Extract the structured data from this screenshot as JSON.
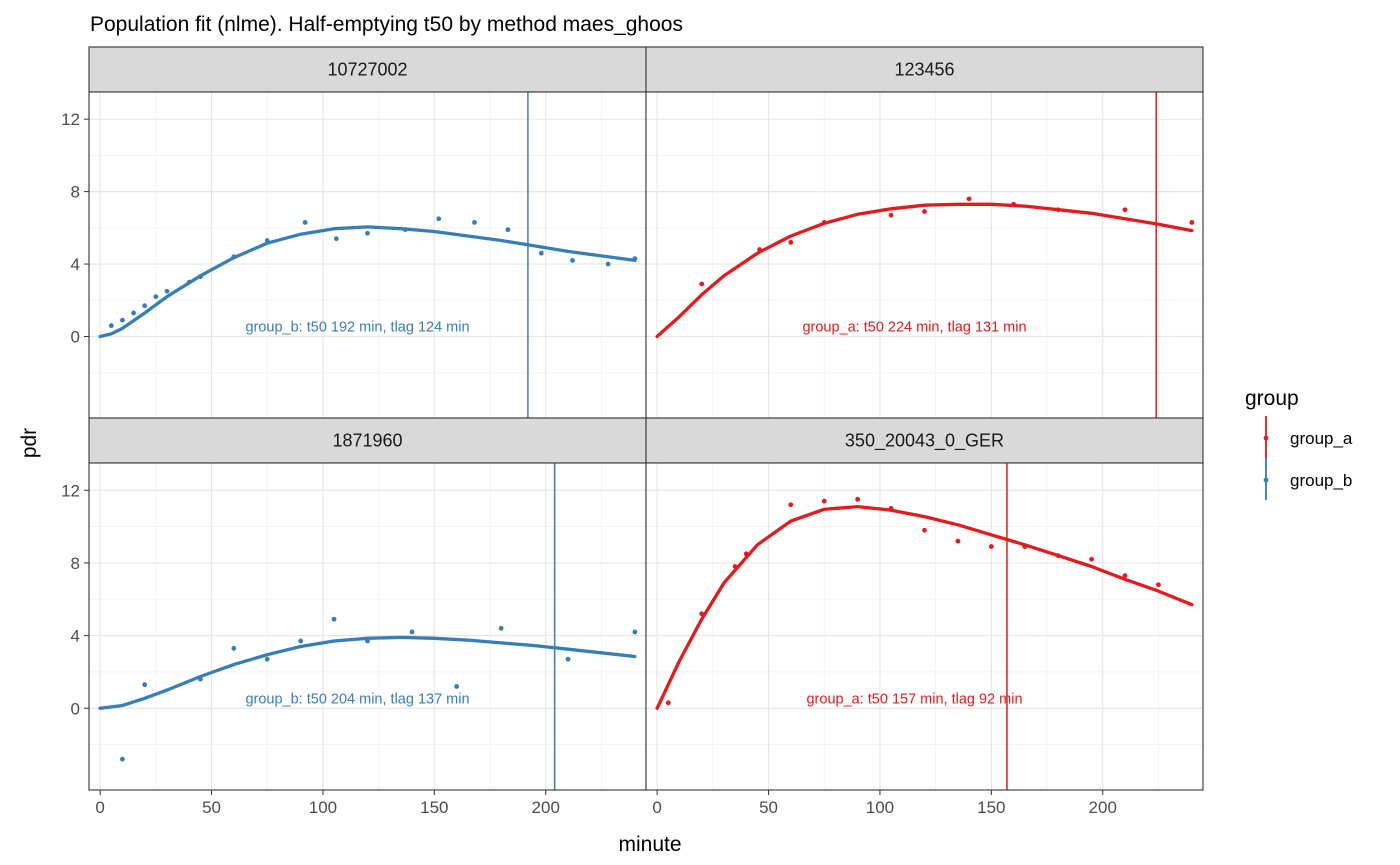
{
  "chart_data": {
    "type": "scatter",
    "title": "Population fit (nlme). Half-emptying t50 by method maes_ghoos",
    "xlabel": "minute",
    "ylabel": "pdr",
    "xlim": [
      -5,
      245
    ],
    "ylim": [
      -4.5,
      13.5
    ],
    "x_ticks": [
      0,
      50,
      100,
      150,
      200
    ],
    "y_ticks": [
      0,
      4,
      8,
      12
    ],
    "grid": true,
    "legend": {
      "title": "group",
      "placement": "right",
      "entries": [
        {
          "label": "group_a",
          "color": "#e41a1c"
        },
        {
          "label": "group_b",
          "color": "#377eb8"
        }
      ]
    },
    "panels": [
      {
        "label": "10727002",
        "group": "group_b",
        "color": "#377eb8",
        "t50": 192,
        "annotation": "group_b: t50 192 min, tlag 124 min",
        "points": [
          [
            5,
            0.6
          ],
          [
            10,
            0.9
          ],
          [
            15,
            1.3
          ],
          [
            20,
            1.7
          ],
          [
            25,
            2.2
          ],
          [
            30,
            2.5
          ],
          [
            40,
            3.0
          ],
          [
            45,
            3.3
          ],
          [
            60,
            4.4
          ],
          [
            75,
            5.3
          ],
          [
            92,
            6.3
          ],
          [
            106,
            5.4
          ],
          [
            120,
            5.7
          ],
          [
            137,
            5.9
          ],
          [
            152,
            6.5
          ],
          [
            168,
            6.3
          ],
          [
            183,
            5.9
          ],
          [
            198,
            4.6
          ],
          [
            212,
            4.2
          ],
          [
            228,
            4.0
          ],
          [
            240,
            4.3
          ]
        ],
        "fit": [
          [
            0,
            0
          ],
          [
            5,
            0.15
          ],
          [
            10,
            0.45
          ],
          [
            20,
            1.3
          ],
          [
            30,
            2.2
          ],
          [
            45,
            3.35
          ],
          [
            60,
            4.35
          ],
          [
            75,
            5.15
          ],
          [
            90,
            5.65
          ],
          [
            105,
            5.95
          ],
          [
            120,
            6.05
          ],
          [
            135,
            5.95
          ],
          [
            150,
            5.8
          ],
          [
            165,
            5.55
          ],
          [
            180,
            5.3
          ],
          [
            195,
            5.0
          ],
          [
            210,
            4.7
          ],
          [
            225,
            4.45
          ],
          [
            240,
            4.2
          ]
        ]
      },
      {
        "label": "123456",
        "group": "group_a",
        "color": "#e41a1c",
        "t50": 224,
        "annotation": "group_a: t50 224 min, tlag 131 min",
        "points": [
          [
            20,
            2.9
          ],
          [
            46,
            4.8
          ],
          [
            60,
            5.2
          ],
          [
            75,
            6.3
          ],
          [
            105,
            6.7
          ],
          [
            120,
            6.9
          ],
          [
            140,
            7.6
          ],
          [
            160,
            7.3
          ],
          [
            180,
            7.0
          ],
          [
            210,
            7.0
          ],
          [
            240,
            6.3
          ]
        ],
        "fit": [
          [
            0,
            0
          ],
          [
            10,
            1.1
          ],
          [
            20,
            2.3
          ],
          [
            30,
            3.35
          ],
          [
            45,
            4.6
          ],
          [
            60,
            5.55
          ],
          [
            75,
            6.25
          ],
          [
            90,
            6.75
          ],
          [
            105,
            7.05
          ],
          [
            120,
            7.25
          ],
          [
            135,
            7.3
          ],
          [
            150,
            7.3
          ],
          [
            165,
            7.2
          ],
          [
            180,
            7.0
          ],
          [
            195,
            6.8
          ],
          [
            210,
            6.5
          ],
          [
            225,
            6.2
          ],
          [
            240,
            5.85
          ]
        ]
      },
      {
        "label": "1871960",
        "group": "group_b",
        "color": "#377eb8",
        "t50": 204,
        "annotation": "group_b: t50 204 min, tlag 137 min",
        "points": [
          [
            10,
            -2.8
          ],
          [
            20,
            1.3
          ],
          [
            45,
            1.6
          ],
          [
            60,
            3.3
          ],
          [
            75,
            2.7
          ],
          [
            90,
            3.7
          ],
          [
            105,
            4.9
          ],
          [
            120,
            3.7
          ],
          [
            140,
            4.2
          ],
          [
            160,
            1.2
          ],
          [
            180,
            4.4
          ],
          [
            210,
            2.7
          ],
          [
            240,
            4.2
          ]
        ],
        "fit": [
          [
            0,
            0
          ],
          [
            10,
            0.15
          ],
          [
            20,
            0.55
          ],
          [
            30,
            1.0
          ],
          [
            45,
            1.75
          ],
          [
            60,
            2.4
          ],
          [
            75,
            2.95
          ],
          [
            90,
            3.4
          ],
          [
            105,
            3.7
          ],
          [
            120,
            3.85
          ],
          [
            135,
            3.9
          ],
          [
            150,
            3.85
          ],
          [
            165,
            3.75
          ],
          [
            180,
            3.6
          ],
          [
            195,
            3.45
          ],
          [
            210,
            3.25
          ],
          [
            225,
            3.05
          ],
          [
            240,
            2.85
          ]
        ]
      },
      {
        "label": "350_20043_0_GER",
        "group": "group_a",
        "color": "#e41a1c",
        "t50": 157,
        "annotation": "group_a: t50 157 min, tlag 92 min",
        "points": [
          [
            5,
            0.3
          ],
          [
            20,
            5.2
          ],
          [
            35,
            7.8
          ],
          [
            40,
            8.5
          ],
          [
            60,
            11.2
          ],
          [
            75,
            11.4
          ],
          [
            90,
            11.5
          ],
          [
            105,
            11.0
          ],
          [
            120,
            9.8
          ],
          [
            135,
            9.2
          ],
          [
            150,
            8.9
          ],
          [
            165,
            8.9
          ],
          [
            180,
            8.4
          ],
          [
            195,
            8.2
          ],
          [
            210,
            7.3
          ],
          [
            225,
            6.8
          ]
        ],
        "fit": [
          [
            0,
            0
          ],
          [
            10,
            2.6
          ],
          [
            20,
            4.9
          ],
          [
            30,
            6.9
          ],
          [
            45,
            9.0
          ],
          [
            60,
            10.3
          ],
          [
            75,
            10.95
          ],
          [
            90,
            11.1
          ],
          [
            105,
            10.9
          ],
          [
            120,
            10.55
          ],
          [
            135,
            10.1
          ],
          [
            150,
            9.55
          ],
          [
            165,
            9.0
          ],
          [
            180,
            8.4
          ],
          [
            195,
            7.8
          ],
          [
            210,
            7.1
          ],
          [
            225,
            6.45
          ],
          [
            240,
            5.7
          ]
        ]
      }
    ]
  }
}
